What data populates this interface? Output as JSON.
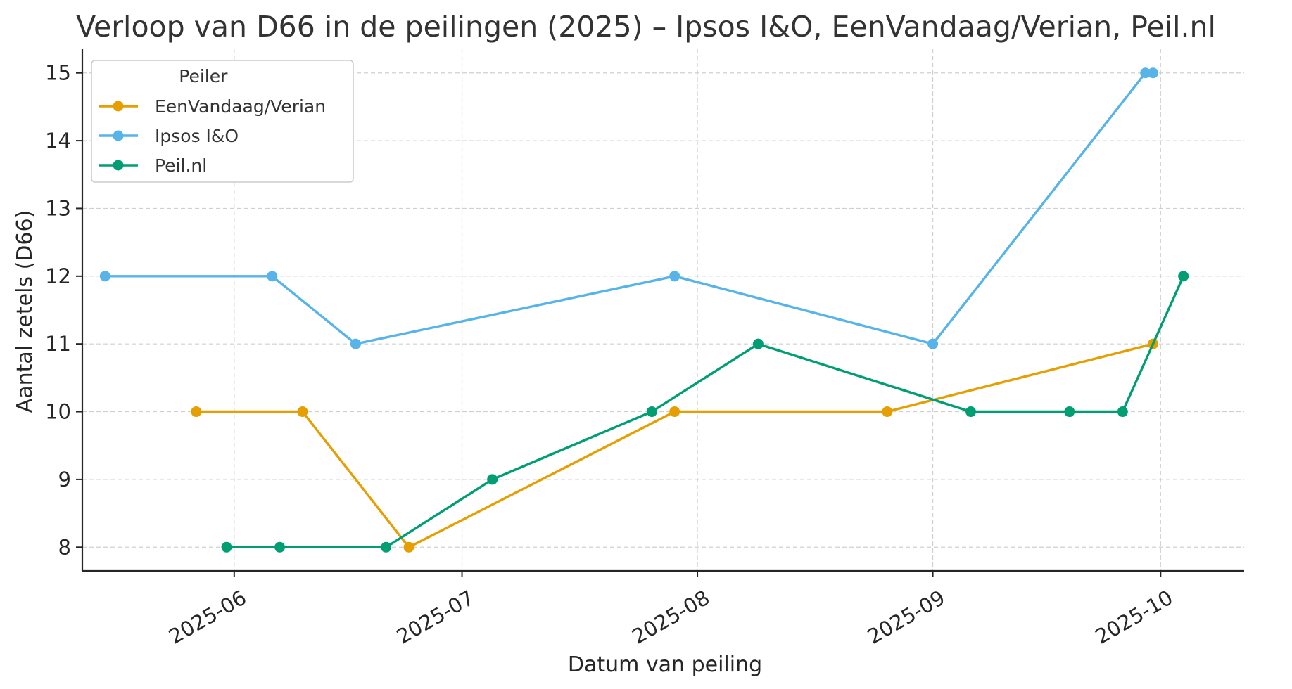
{
  "chart_data": {
    "type": "line",
    "title": "Verloop van D66 in de peilingen (2025) – Ipsos I&O, EenVandaag/Verian, Peil.nl",
    "xlabel": "Datum van peiling",
    "ylabel": "Aantal zetels (D66)",
    "x_type": "date",
    "xlim": [
      "2025-05-12",
      "2025-10-12"
    ],
    "ylim": [
      7.65,
      15.35
    ],
    "x_ticks": [
      "2025-06-01",
      "2025-07-01",
      "2025-08-01",
      "2025-09-01",
      "2025-10-01"
    ],
    "x_tick_labels": [
      "2025-06",
      "2025-07",
      "2025-08",
      "2025-09",
      "2025-10"
    ],
    "y_ticks": [
      8,
      9,
      10,
      11,
      12,
      13,
      14,
      15
    ],
    "grid": true,
    "legend": {
      "title": "Peiler",
      "placement": "top-left"
    },
    "series": [
      {
        "name": "EenVandaag/Verian",
        "color": "#E69F00",
        "points": [
          {
            "x": "2025-05-27",
            "y": 10
          },
          {
            "x": "2025-06-10",
            "y": 10
          },
          {
            "x": "2025-06-24",
            "y": 8
          },
          {
            "x": "2025-07-29",
            "y": 10
          },
          {
            "x": "2025-08-26",
            "y": 10
          },
          {
            "x": "2025-09-30",
            "y": 11
          }
        ]
      },
      {
        "name": "Ipsos I&O",
        "color": "#56B4E9",
        "points": [
          {
            "x": "2025-05-15",
            "y": 12
          },
          {
            "x": "2025-06-06",
            "y": 12
          },
          {
            "x": "2025-06-17",
            "y": 11
          },
          {
            "x": "2025-07-29",
            "y": 12
          },
          {
            "x": "2025-09-01",
            "y": 11
          },
          {
            "x": "2025-09-29",
            "y": 15
          },
          {
            "x": "2025-09-30",
            "y": 15
          }
        ]
      },
      {
        "name": "Peil.nl",
        "color": "#009E73",
        "points": [
          {
            "x": "2025-05-31",
            "y": 8
          },
          {
            "x": "2025-06-07",
            "y": 8
          },
          {
            "x": "2025-06-21",
            "y": 8
          },
          {
            "x": "2025-07-05",
            "y": 9
          },
          {
            "x": "2025-07-26",
            "y": 10
          },
          {
            "x": "2025-08-09",
            "y": 11
          },
          {
            "x": "2025-09-06",
            "y": 10
          },
          {
            "x": "2025-09-19",
            "y": 10
          },
          {
            "x": "2025-09-26",
            "y": 10
          },
          {
            "x": "2025-10-04",
            "y": 12
          }
        ]
      }
    ]
  }
}
